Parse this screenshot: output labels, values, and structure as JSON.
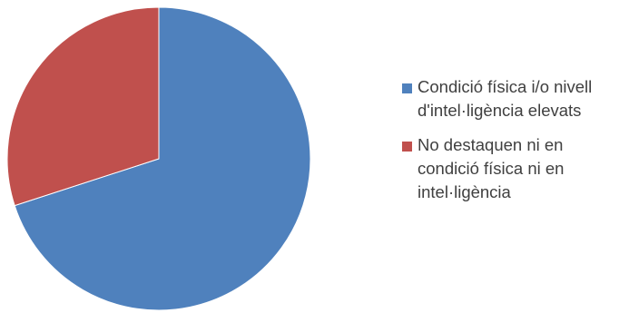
{
  "chart_data": {
    "type": "pie",
    "title": "",
    "categories": [
      "Condició física i/o nivell d'intel·ligència elevats",
      "No destaquen ni en condició física ni en intel·ligència"
    ],
    "values": [
      70,
      30
    ],
    "colors": [
      "#4F81BD",
      "#C0504D"
    ],
    "start_angle_deg": 0,
    "direction": "clockwise",
    "legend_position": "right",
    "data_labels": false
  }
}
